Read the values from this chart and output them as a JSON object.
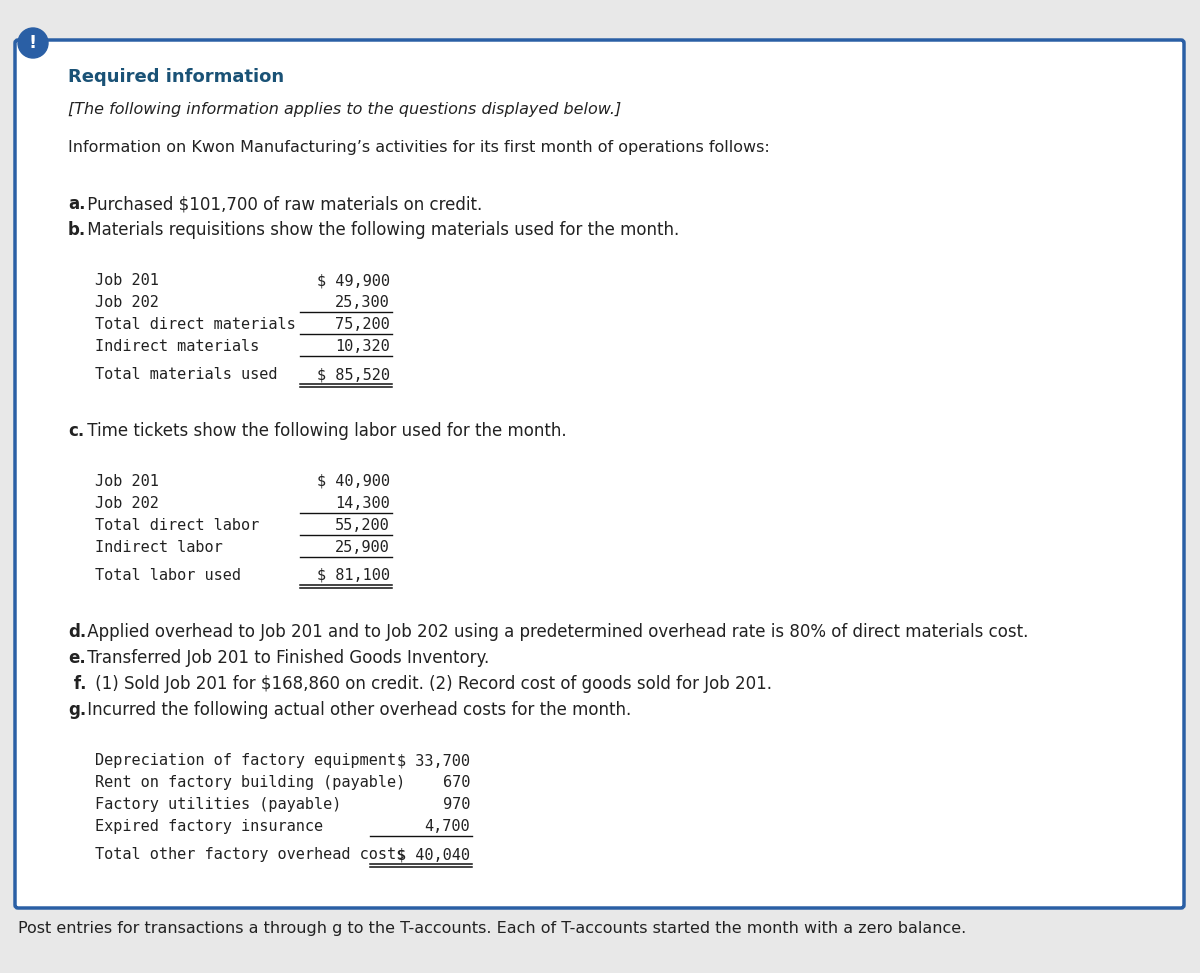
{
  "bg_color": "#ffffff",
  "border_color": "#2a5fa5",
  "exclamation_bg": "#2a5fa5",
  "exclamation_text": "!",
  "required_info_color": "#1a5276",
  "required_info_text": "Required information",
  "italic_line": "[The following information applies to the questions displayed below.]",
  "intro_line": "Information on Kwon Manufacturing’s activities for its first month of operations follows:",
  "section_a_bold": "a.",
  "section_a_text": " Purchased $101,700 of raw materials on credit.",
  "section_b_bold": "b.",
  "section_b_text": " Materials requisitions show the following materials used for the month.",
  "materials_rows": [
    {
      "label": "Job 201",
      "value": "$ 49,900",
      "underline": false
    },
    {
      "label": "Job 202",
      "value": "25,300",
      "underline": true
    },
    {
      "label": "Total direct materials",
      "value": "75,200",
      "underline": true
    },
    {
      "label": "Indirect materials",
      "value": "10,320",
      "underline": true
    }
  ],
  "materials_total_label": "Total materials used",
  "materials_total_value": "$ 85,520",
  "section_c_bold": "c.",
  "section_c_text": " Time tickets show the following labor used for the month.",
  "labor_rows": [
    {
      "label": "Job 201",
      "value": "$ 40,900",
      "underline": false
    },
    {
      "label": "Job 202",
      "value": "14,300",
      "underline": true
    },
    {
      "label": "Total direct labor",
      "value": "55,200",
      "underline": true
    },
    {
      "label": "Indirect labor",
      "value": "25,900",
      "underline": true
    }
  ],
  "labor_total_label": "Total labor used",
  "labor_total_value": "$ 81,100",
  "section_d_bold": "d.",
  "section_d_text": " Applied overhead to Job 201 and to Job 202 using a predetermined overhead rate is 80% of direct materials cost.",
  "section_e_bold": "e.",
  "section_e_text": " Transferred Job 201 to Finished Goods Inventory.",
  "section_f_bold": " f.",
  "section_f_text": " (1) Sold Job 201 for $168,860 on credit. (2) Record cost of goods sold for Job 201.",
  "section_g_bold": "g.",
  "section_g_text": " Incurred the following actual other overhead costs for the month.",
  "overhead_rows": [
    {
      "label": "Depreciation of factory equipment",
      "value": "$ 33,700",
      "underline": false
    },
    {
      "label": "Rent on factory building (payable)",
      "value": "670",
      "underline": false
    },
    {
      "label": "Factory utilities (payable)",
      "value": "970",
      "underline": false
    },
    {
      "label": "Expired factory insurance",
      "value": "4,700",
      "underline": true
    }
  ],
  "overhead_total_label": "Total other factory overhead costs",
  "overhead_total_value": "$ 40,040",
  "footer_text": "Post entries for transactions a through g to the T-accounts. Each of T-accounts started the month with a zero balance.",
  "mono_font": "DejaVu Sans Mono",
  "normal_font": "DejaVu Sans"
}
